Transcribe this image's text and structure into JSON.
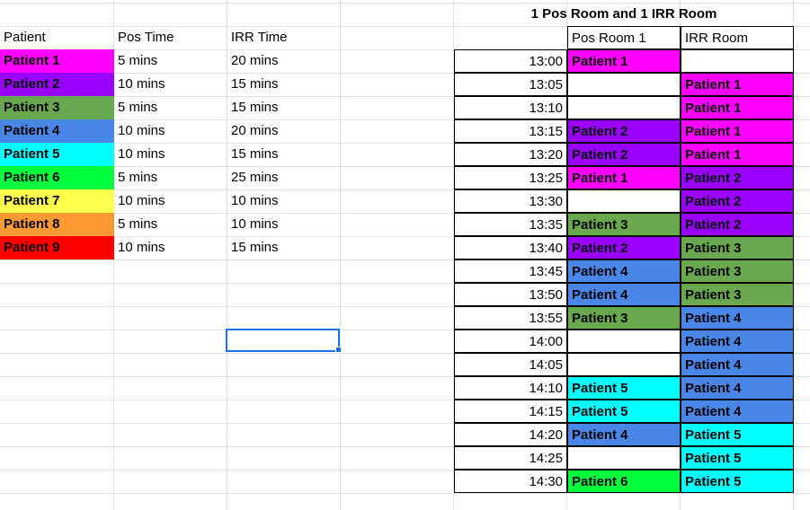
{
  "patient_table": {
    "headers": [
      "Patient",
      "Pos Time",
      "IRR Time"
    ],
    "rows": [
      {
        "patient": "Patient 1",
        "pos": "5 mins",
        "irr": "20 mins",
        "color": "#ff00ff"
      },
      {
        "patient": "Patient 2",
        "pos": "10 mins",
        "irr": "15 mins",
        "color": "#9900ff"
      },
      {
        "patient": "Patient 3",
        "pos": "5 mins",
        "irr": "15 mins",
        "color": "#6aa84f"
      },
      {
        "patient": "Patient 4",
        "pos": "10 mins",
        "irr": "20 mins",
        "color": "#4a86e8"
      },
      {
        "patient": "Patient 5",
        "pos": "10 mins",
        "irr": "15 mins",
        "color": "#00ffff"
      },
      {
        "patient": "Patient 6",
        "pos": "5 mins",
        "irr": "25 mins",
        "color": "#00ff3c"
      },
      {
        "patient": "Patient 7",
        "pos": "10 mins",
        "irr": "10 mins",
        "color": "#ffff4d"
      },
      {
        "patient": "Patient 8",
        "pos": "5 mins",
        "irr": "10 mins",
        "color": "#ff9933"
      },
      {
        "patient": "Patient 9",
        "pos": "10 mins",
        "irr": "15 mins",
        "color": "#ff0000"
      }
    ]
  },
  "schedule": {
    "title": "1 Pos Room and 1 IRR Room",
    "headers": [
      "Pos Room 1",
      "IRR Room"
    ],
    "rows": [
      {
        "time": "13:00",
        "pos": "Patient 1",
        "irr": ""
      },
      {
        "time": "13:05",
        "pos": "",
        "irr": "Patient 1"
      },
      {
        "time": "13:10",
        "pos": "",
        "irr": "Patient 1"
      },
      {
        "time": "13:15",
        "pos": "Patient 2",
        "irr": "Patient 1"
      },
      {
        "time": "13:20",
        "pos": "Patient 2",
        "irr": "Patient 1"
      },
      {
        "time": "13:25",
        "pos": "Patient 1",
        "irr": "Patient 2"
      },
      {
        "time": "13:30",
        "pos": "",
        "irr": "Patient 2"
      },
      {
        "time": "13:35",
        "pos": "Patient 3",
        "irr": "Patient 2"
      },
      {
        "time": "13:40",
        "pos": "Patient 2",
        "irr": "Patient 3"
      },
      {
        "time": "13:45",
        "pos": "Patient 4",
        "irr": "Patient 3"
      },
      {
        "time": "13:50",
        "pos": "Patient 4",
        "irr": "Patient 3"
      },
      {
        "time": "13:55",
        "pos": "Patient 3",
        "irr": "Patient 4"
      },
      {
        "time": "14:00",
        "pos": "",
        "irr": "Patient 4"
      },
      {
        "time": "14:05",
        "pos": "",
        "irr": "Patient 4"
      },
      {
        "time": "14:10",
        "pos": "Patient 5",
        "irr": "Patient 4"
      },
      {
        "time": "14:15",
        "pos": "Patient 5",
        "irr": "Patient 4"
      },
      {
        "time": "14:20",
        "pos": "Patient 4",
        "irr": "Patient 5"
      },
      {
        "time": "14:25",
        "pos": "",
        "irr": "Patient 5"
      },
      {
        "time": "14:30",
        "pos": "Patient 6",
        "irr": "Patient 5"
      }
    ]
  }
}
